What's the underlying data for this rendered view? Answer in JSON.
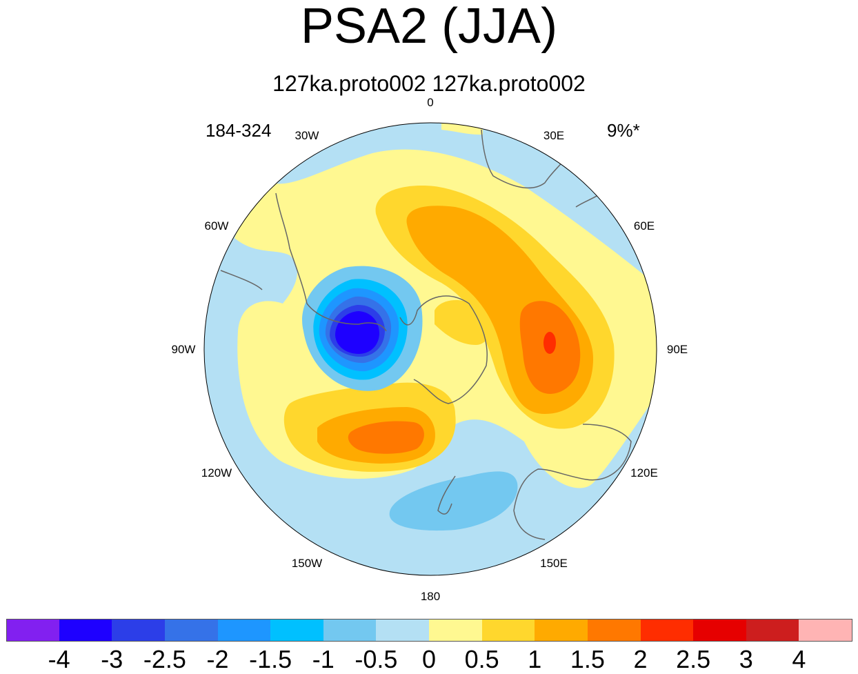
{
  "title": "PSA2 (JJA)",
  "subtitle": "127ka.proto002  127ka.proto002",
  "left_annotation": "184-324",
  "right_annotation": "9%*",
  "map": {
    "projection": "south-polar stereographic",
    "longitude_labels": [
      "0",
      "30E",
      "60E",
      "90E",
      "120E",
      "150E",
      "180",
      "150W",
      "120W",
      "90W",
      "60W",
      "30W"
    ],
    "coastline_color": "#666666",
    "field": "PSA2 pattern",
    "features": [
      {
        "name": "negative-center-south-america-sector",
        "sign": "negative",
        "peak_level": -3
      },
      {
        "name": "positive-center-south-of-africa",
        "sign": "positive",
        "peak_level": 1
      },
      {
        "name": "positive-center-south-indian-ocean",
        "sign": "positive",
        "peak_level": 2
      },
      {
        "name": "positive-center-ross-amundsen-sector",
        "sign": "positive",
        "peak_level": 1.5
      },
      {
        "name": "negative-center-tasman-sea",
        "sign": "negative",
        "peak_level": -0.5
      }
    ]
  },
  "colorbar": {
    "colors": [
      "#8220f0",
      "#1e00ff",
      "#2c3ee8",
      "#3572e8",
      "#1e96ff",
      "#00c0ff",
      "#73c8f0",
      "#b4e0f4",
      "#fff891",
      "#ffd72d",
      "#ffaa00",
      "#ff7800",
      "#ff2d00",
      "#e60000",
      "#cd1e1e",
      "#ffb4b4"
    ],
    "labels": [
      "-4",
      "-3",
      "-2.5",
      "-2",
      "-1.5",
      "-1",
      "-0.5",
      "0",
      "0.5",
      "1",
      "1.5",
      "2",
      "2.5",
      "3",
      "4"
    ]
  }
}
